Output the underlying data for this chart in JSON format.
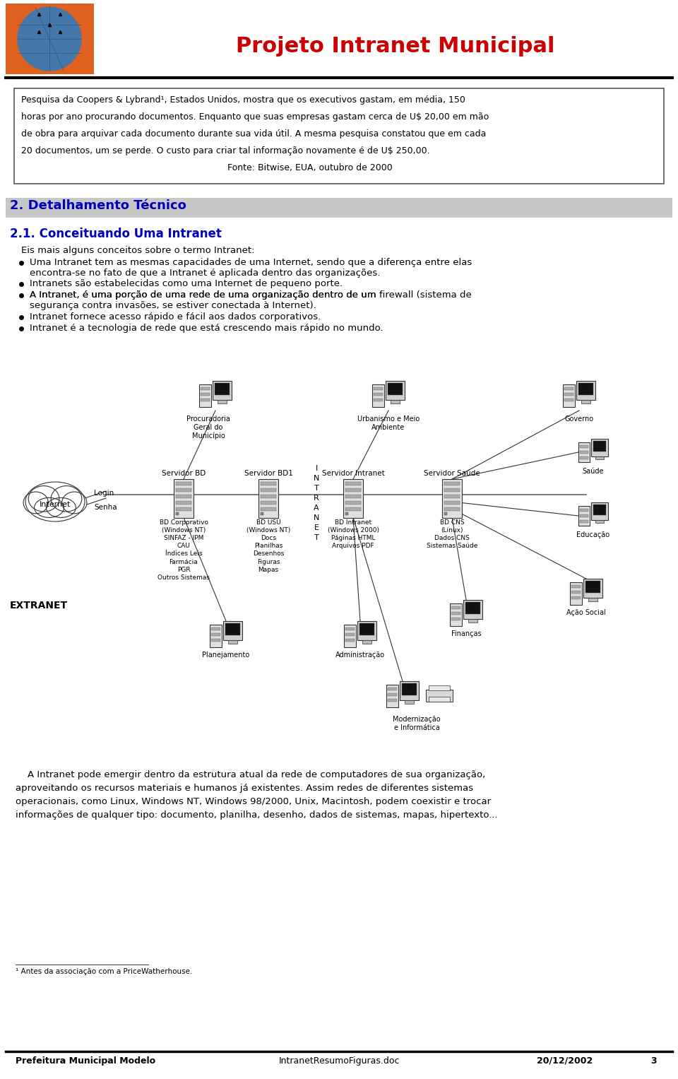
{
  "bg_color": "#ffffff",
  "title_text": "Projeto Intranet Municipal",
  "title_color": "#cc0000",
  "box_lines": [
    "Pesquisa da Coopers & Lybrand¹, Estados Unidos, mostra que os executivos gastam, em média, 150",
    "horas por ano procurando documentos. Enquanto que suas empresas gastam cerca de U$ 20,00 em mão",
    "de obra para arquivar cada documento durante sua vida útil. A mesma pesquisa constatou que em cada",
    "20 documentos, um se perde. O custo para criar tal informação novamente é de U$ 250,00.",
    "                                                                         Fonte: Bitwise, EUA, outubro de 2000"
  ],
  "section2_title": "2. Detalhamento Técnico",
  "section2_bg": "#c0c0c0",
  "section21_title": "2.1. Conceituando Uma Intranet",
  "blue": "#0000bb",
  "intro_text": "Eis mais alguns conceitos sobre o termo Intranet:",
  "bullet1_line1": "Uma Intranet tem as mesmas capacidades de uma Internet, sendo que a diferença entre elas",
  "bullet1_line2": "encontra-se no fato de que a Intranet é aplicada dentro das organizações.",
  "bullet2": "Intranets são estabelecidas como uma Internet de pequeno porte.",
  "bullet3_line1": "A Intranet, é uma porção de uma rede de uma organização dentro de um",
  "bullet3_italic": "firewall",
  "bullet3_line1b": "(sistema de",
  "bullet3_line2": "segurança contra invasões, se estiver conectada à Internet).",
  "bullet4": "Intranet fornece acesso rápido e fácil aos dados corporativos.",
  "bullet5": "Intranet é a tecnologia de rede que está crescendo mais rápido no mundo.",
  "servidor_bd": "Servidor BD",
  "servidor_bd1": "Servidor BD1",
  "servidor_intranet": "Servidor Intranet",
  "servidor_saude": "Servidor Saúde",
  "procuradoria": "Procuradoria\nGeral do\nMunicípio",
  "urbanismo": "Urbanismo e Meio\nAmbiente",
  "governo": "Governo",
  "saude": "Saúde",
  "educacao": "Educação",
  "financas": "Finanças",
  "acao_social": "Ação Social",
  "planejamento": "Planejamento",
  "administracao": "Administração",
  "modernizacao": "Modernização\ne Informática",
  "internet_label": "Internet",
  "senha_label": "Senha",
  "login_label": "Login",
  "extranet_label": "EXTRANET",
  "bd_corp": "BD Corporativo\n(Windows NT)\nSINFAZ - IPM\nCAU\nÍndices Leis\nFarmácia\nPGR\nOutros Sistemas",
  "bd_usu": "BD USU\n(Windows NT)\nDocs\nPlanilhas\nDesenhos\nFiguras\nMapas",
  "bd_intranet": "BD Intranet\n(Windows 2000)\nPáginas HTML\nArquivos PDF",
  "bd_cns": "BD CNS\n(Linux)\nDados CNS\nSistemas Saúde",
  "intranet_chars": [
    "I",
    "N",
    "T",
    "R",
    "A",
    "N",
    "E",
    "T"
  ],
  "closing_lines": [
    "    A Intranet pode emergir dentro da estrutura atual da rede de computadores de sua organização,",
    "aproveitando os recursos materiais e humanos já existentes. Assim redes de diferentes sistemas",
    "operacionais, como Linux, Windows NT, Windows 98/2000, Unix, Macintosh, podem coexistir e trocar",
    "informações de qualquer tipo: documento, planilha, desenho, dados de sistemas, mapas, hipertexto..."
  ],
  "footnote": "¹ Antes da associação com a PriceWatherhouse.",
  "footer_left": "Prefeitura Municipal Modelo",
  "footer_center": "IntranetResumoFiguras.doc",
  "footer_right": "20/12/2002",
  "footer_page": "3"
}
